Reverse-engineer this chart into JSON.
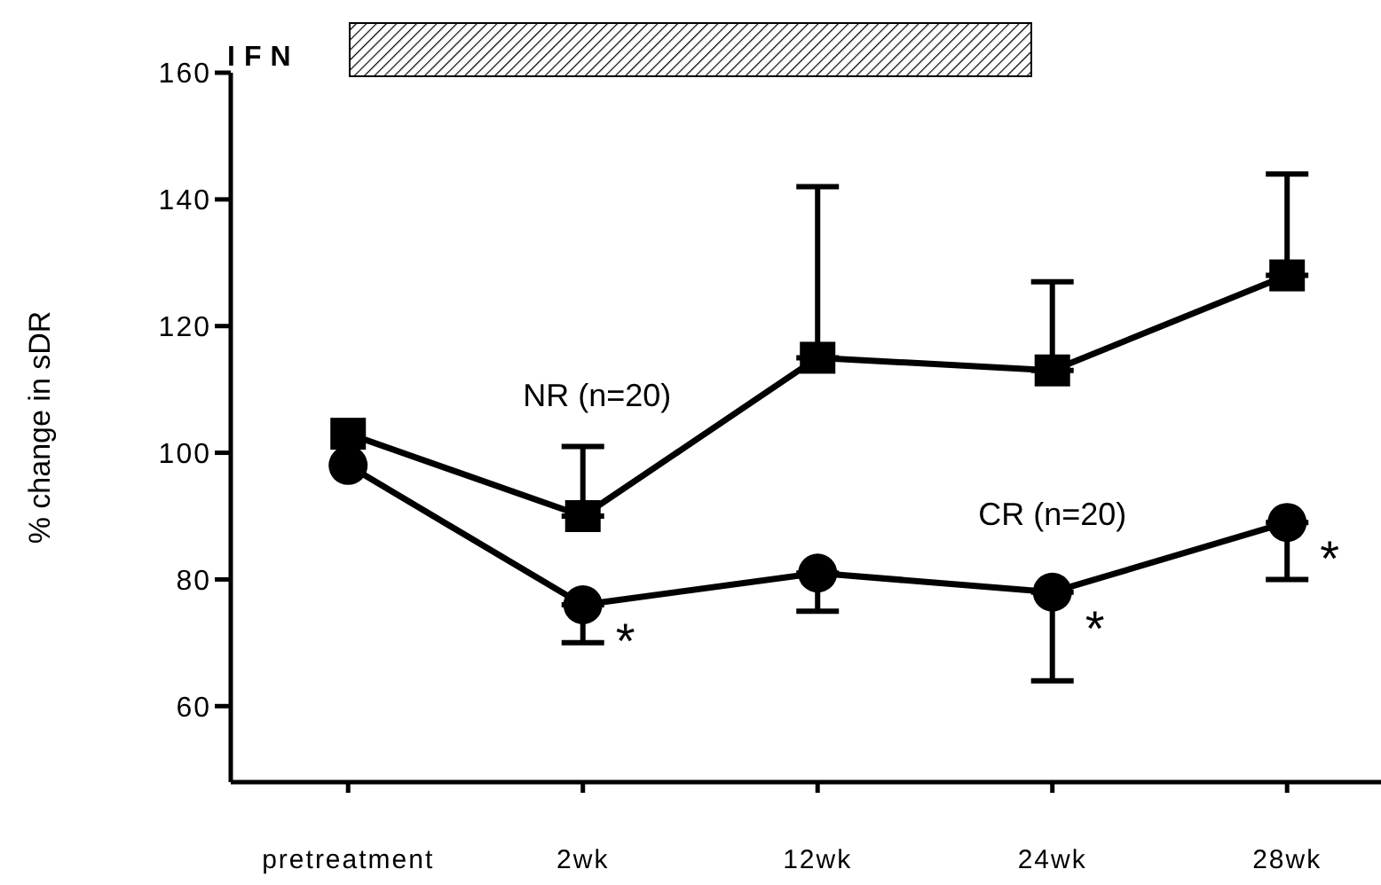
{
  "chart_data": {
    "type": "line",
    "ylabel": "% change in sDR",
    "categories": [
      "pretreatment",
      "2wk",
      "12wk",
      "24wk",
      "28wk"
    ],
    "ylim": [
      48,
      160
    ],
    "yticks": [
      60,
      80,
      100,
      120,
      140,
      160
    ],
    "series": [
      {
        "name": "NR (n=20)",
        "color": "#000000",
        "marker": "square",
        "values": [
          103,
          90,
          115,
          113,
          128
        ],
        "errors": [
          null,
          [
            90,
            101
          ],
          [
            115,
            142
          ],
          [
            113,
            127
          ],
          [
            128,
            144
          ]
        ]
      },
      {
        "name": "CR (n=20)",
        "color": "#000000",
        "marker": "circle",
        "values": [
          98,
          76,
          81,
          78,
          89
        ],
        "errors": [
          null,
          [
            70,
            76
          ],
          [
            75,
            81
          ],
          [
            64,
            78
          ],
          [
            80,
            89
          ]
        ]
      }
    ],
    "annotations": [
      "IFN",
      {
        "text": "*",
        "x": "2wk",
        "y": 76
      },
      {
        "text": "*",
        "x": "24wk",
        "y": 78
      },
      {
        "text": "*",
        "x": "28wk",
        "y": 89
      }
    ]
  }
}
